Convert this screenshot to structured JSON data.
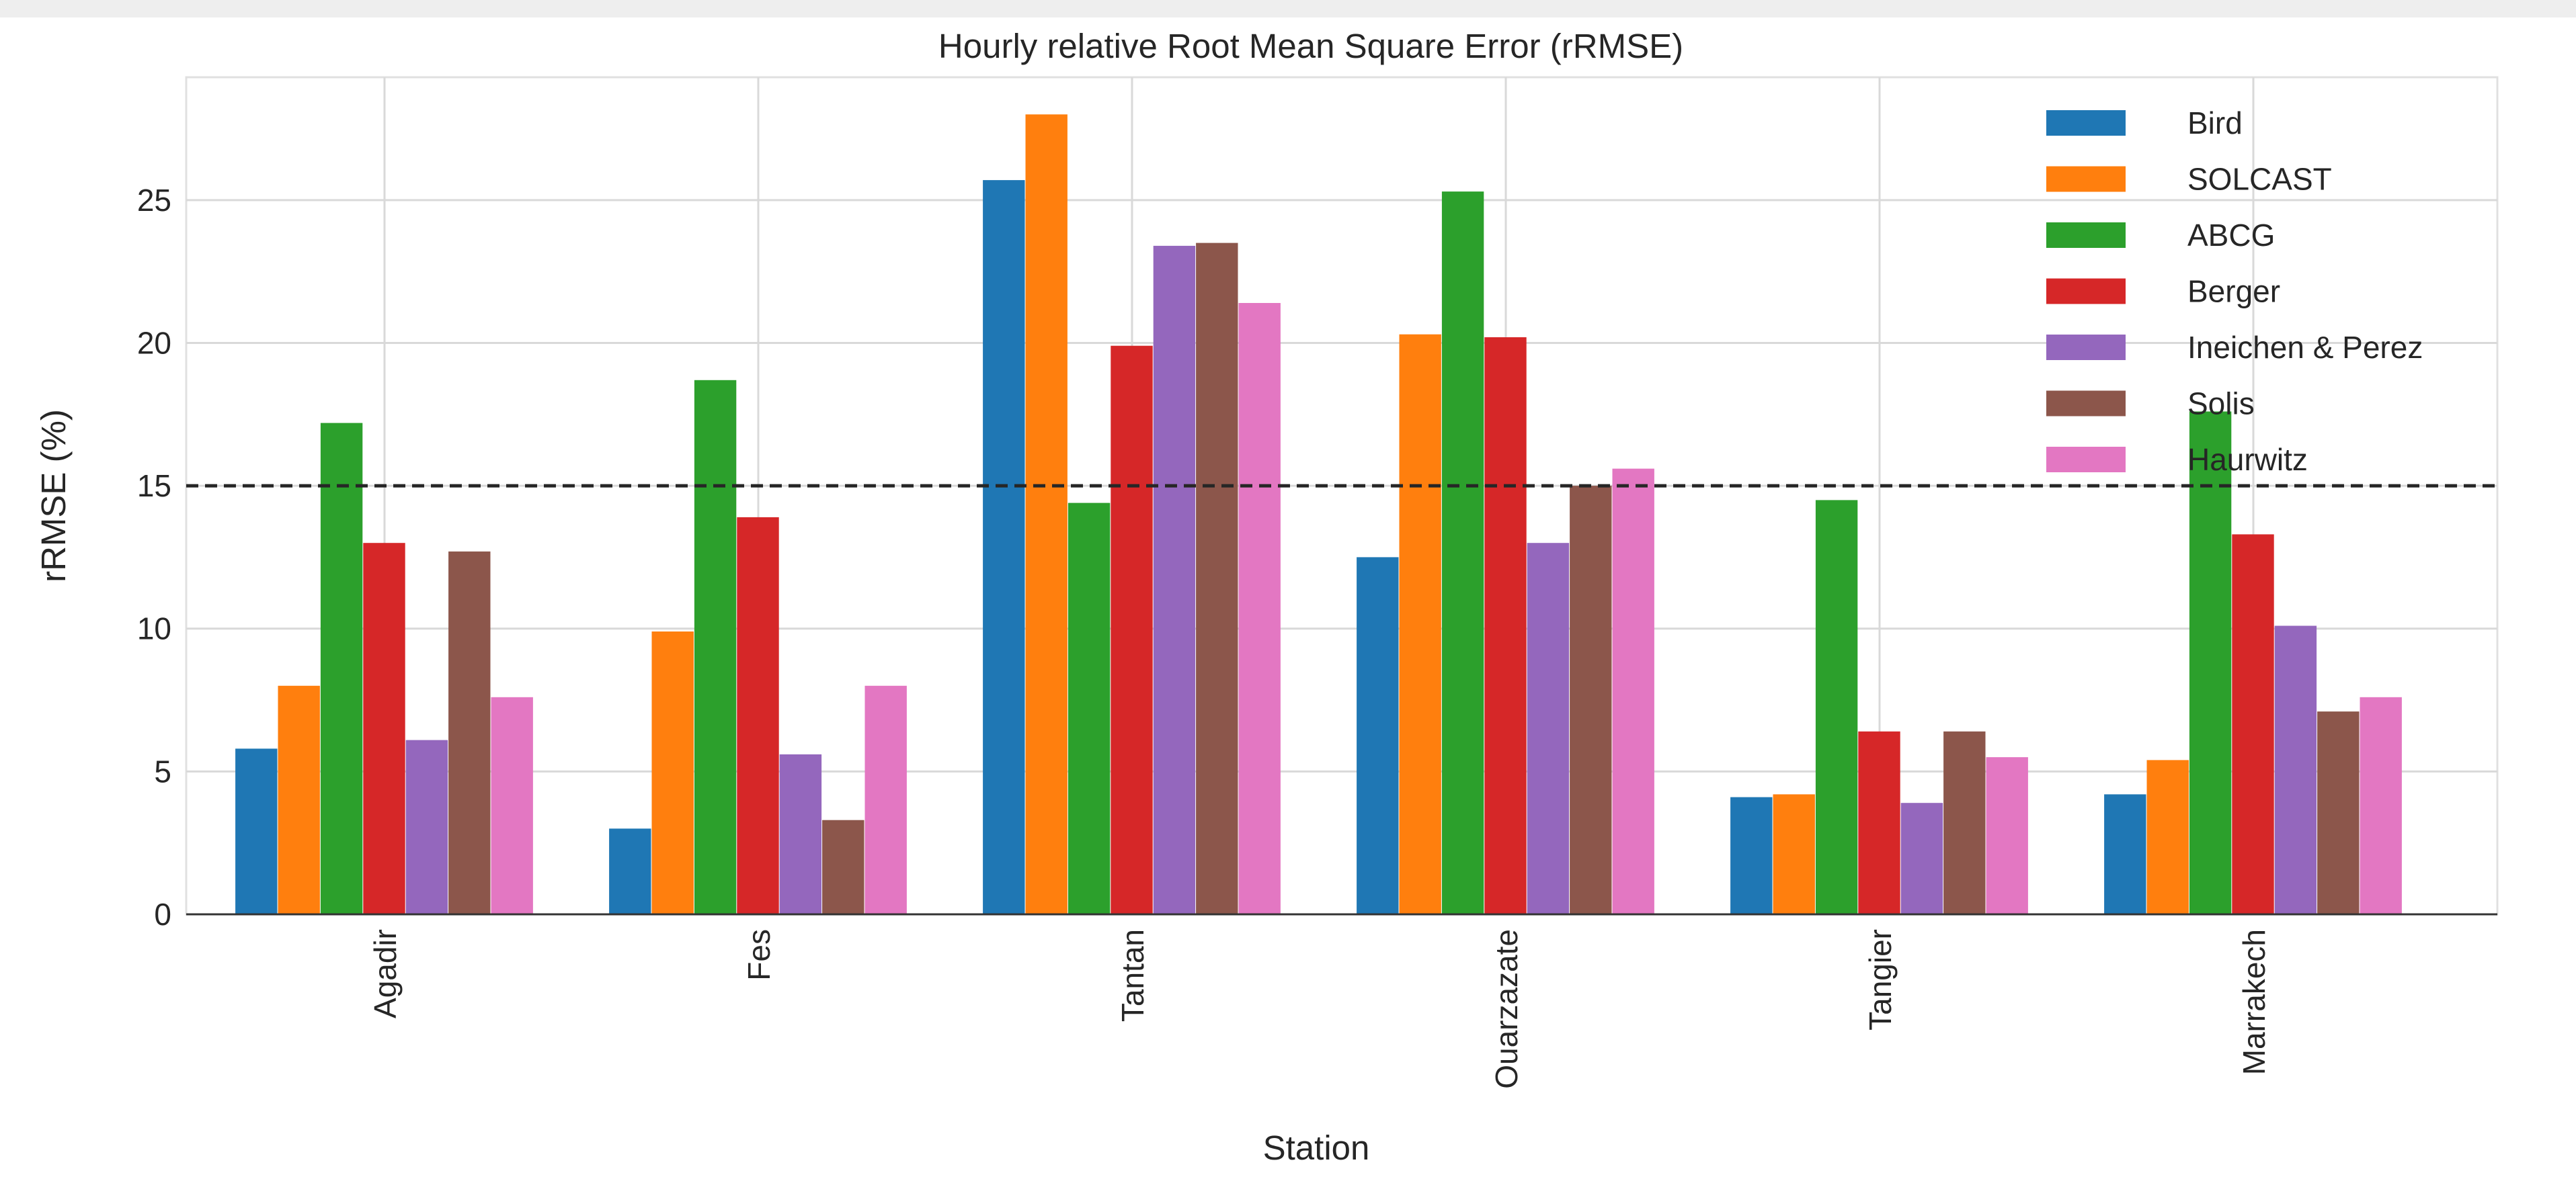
{
  "chart_data": {
    "type": "bar",
    "title": "Hourly relative Root Mean Square Error (rRMSE)",
    "xlabel": "Station",
    "ylabel": "rRMSE (%)",
    "ylim": [
      0,
      29.3
    ],
    "yticks": [
      0,
      5,
      10,
      15,
      20,
      25
    ],
    "ytick_labels": [
      "0",
      "5",
      "10",
      "15",
      "20",
      "25"
    ],
    "grid": true,
    "legend_position": "top-right",
    "reference_line": {
      "y": 15,
      "style": "dashed",
      "color": "#262626"
    },
    "categories": [
      "Agadir",
      "Fes",
      "Tantan",
      "Ouarzazate",
      "Tangier",
      "Marrakech"
    ],
    "series": [
      {
        "name": "Bird",
        "color": "#1f77b4",
        "values": [
          5.8,
          3.0,
          25.7,
          12.5,
          4.1,
          4.2
        ]
      },
      {
        "name": "SOLCAST",
        "color": "#ff7f0e",
        "values": [
          8.0,
          9.9,
          28.0,
          20.3,
          4.2,
          5.4
        ]
      },
      {
        "name": "ABCG",
        "color": "#2ca02c",
        "values": [
          17.2,
          18.7,
          14.4,
          25.3,
          14.5,
          17.6
        ]
      },
      {
        "name": "Berger",
        "color": "#d62728",
        "values": [
          13.0,
          13.9,
          19.9,
          20.2,
          6.4,
          13.3
        ]
      },
      {
        "name": "Ineichen & Perez",
        "color": "#9467bd",
        "values": [
          6.1,
          5.6,
          23.4,
          13.0,
          3.9,
          10.1
        ]
      },
      {
        "name": "Solis",
        "color": "#8c564b",
        "values": [
          12.7,
          3.3,
          23.5,
          15.0,
          6.4,
          7.1
        ]
      },
      {
        "name": "Haurwitz",
        "color": "#e377c2",
        "values": [
          7.6,
          8.0,
          21.4,
          15.6,
          5.5,
          7.6
        ]
      }
    ]
  }
}
